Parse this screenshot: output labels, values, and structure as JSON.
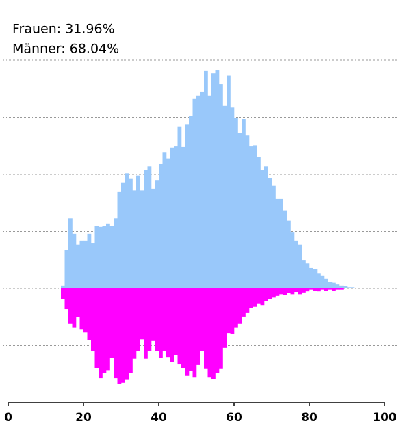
{
  "chart_data": {
    "type": "histogram",
    "annotations": [
      "Frauen: 31.96%",
      "Männer: 68.04%"
    ],
    "bins": [
      14,
      15,
      16,
      17,
      18,
      19,
      20,
      21,
      22,
      23,
      24,
      25,
      26,
      27,
      28,
      29,
      30,
      31,
      32,
      33,
      34,
      35,
      36,
      37,
      38,
      39,
      40,
      41,
      42,
      43,
      44,
      45,
      46,
      47,
      48,
      49,
      50,
      51,
      52,
      53,
      54,
      55,
      56,
      57,
      58,
      59,
      60,
      61,
      62,
      63,
      64,
      65,
      66,
      67,
      68,
      69,
      70,
      71,
      72,
      73,
      74,
      75,
      76,
      77,
      78,
      79,
      80,
      81,
      82,
      83,
      84,
      85,
      86,
      87,
      88,
      89,
      90,
      91,
      92
    ],
    "series": [
      {
        "color": "#99c8fa",
        "values": [
          5,
          68,
          123,
          96,
          77,
          84,
          84,
          96,
          79,
          110,
          108,
          110,
          114,
          110,
          123,
          169,
          186,
          202,
          192,
          172,
          198,
          172,
          208,
          214,
          175,
          189,
          218,
          238,
          228,
          247,
          249,
          283,
          248,
          287,
          303,
          332,
          338,
          345,
          381,
          338,
          377,
          382,
          358,
          320,
          373,
          317,
          299,
          272,
          297,
          268,
          249,
          251,
          230,
          208,
          214,
          193,
          180,
          157,
          157,
          137,
          119,
          98,
          84,
          77,
          49,
          44,
          36,
          34,
          26,
          23,
          17,
          12,
          10,
          7,
          5,
          4,
          2,
          2
        ]
      },
      {
        "color": "#ff00ff",
        "values": [
          -19,
          -36,
          -62,
          -69,
          -50,
          -71,
          -77,
          -90,
          -110,
          -139,
          -157,
          -148,
          -143,
          -122,
          -157,
          -167,
          -165,
          -160,
          -148,
          -123,
          -109,
          -89,
          -123,
          -110,
          -92,
          -110,
          -122,
          -110,
          -120,
          -129,
          -117,
          -133,
          -139,
          -153,
          -144,
          -156,
          -134,
          -110,
          -141,
          -156,
          -159,
          -148,
          -141,
          -104,
          -78,
          -79,
          -69,
          -62,
          -49,
          -43,
          -34,
          -32,
          -26,
          -29,
          -22,
          -19,
          -16,
          -13,
          -10,
          -11,
          -8,
          -10,
          -6,
          -10,
          -7,
          -5,
          -2,
          -4,
          -5,
          -2,
          -4,
          -2,
          -4,
          -2,
          -2,
          0,
          0,
          0
        ]
      }
    ],
    "xlim": [
      0,
      100
    ],
    "xticks": [
      0,
      20,
      40,
      60,
      80,
      100
    ],
    "ylim": [
      -200,
      500
    ],
    "yticks": [
      -100,
      0,
      100,
      200,
      300,
      400,
      500
    ],
    "grid": true
  }
}
